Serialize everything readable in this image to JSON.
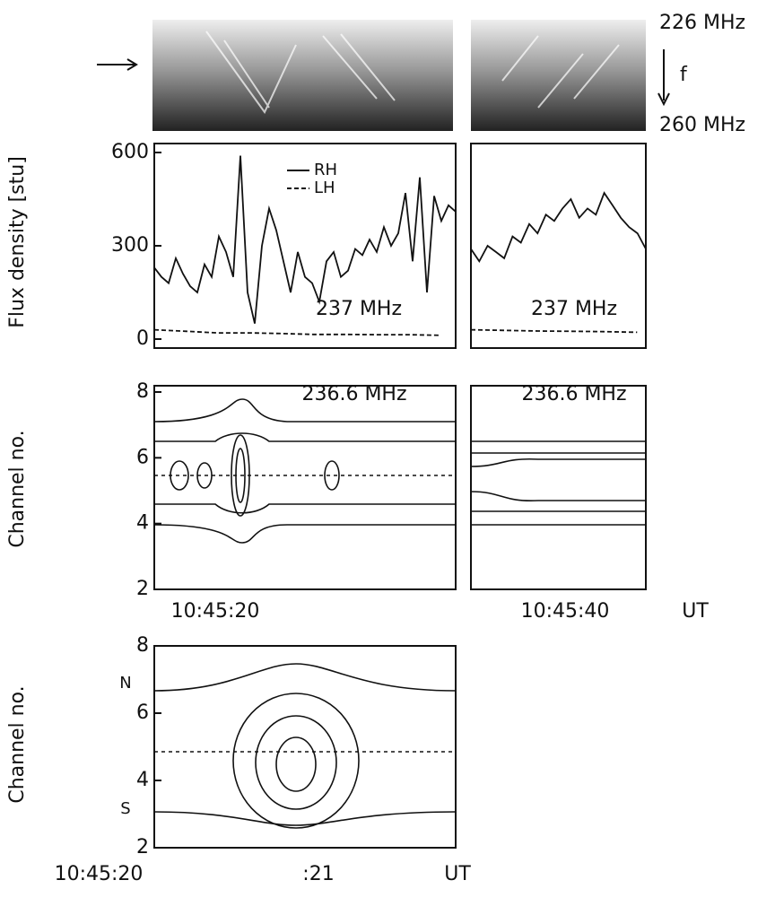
{
  "spectrogram": {
    "top_label": "226 MHz",
    "axis_label": "f",
    "bottom_label": "260 MHz"
  },
  "chart_data": [
    {
      "type": "line",
      "ylabel": "Flux density [stu]",
      "annotation": "237 MHz",
      "ylim": [
        0,
        600
      ],
      "yticks": [
        0,
        300,
        600
      ],
      "series": [
        {
          "name": "RH",
          "color": "#111111",
          "linestyle": "solid",
          "values": [
            230,
            200,
            180,
            260,
            210,
            170,
            150,
            240,
            200,
            330,
            280,
            200,
            590,
            150,
            50,
            300,
            420,
            350,
            250,
            150,
            280,
            200,
            180,
            120,
            250,
            280,
            200,
            220,
            290,
            270,
            320,
            280,
            360,
            300,
            340,
            470,
            250,
            520,
            150,
            460,
            380,
            430,
            410
          ]
        },
        {
          "name": "LH",
          "color": "#111111",
          "linestyle": "dashed",
          "values": [
            30,
            25,
            20,
            20,
            18,
            15,
            15,
            14,
            14,
            12
          ]
        }
      ]
    },
    {
      "type": "line",
      "annotation": "237 MHz",
      "ylim": [
        0,
        600
      ],
      "series": [
        {
          "color": "#111111",
          "linestyle": "solid",
          "values": [
            290,
            250,
            300,
            280,
            260,
            330,
            310,
            370,
            340,
            400,
            380,
            420,
            450,
            390,
            420,
            400,
            470,
            430,
            390,
            360,
            340,
            290
          ]
        },
        {
          "color": "#111111",
          "linestyle": "dashed",
          "values": [
            30,
            28,
            26,
            25,
            24,
            22
          ]
        }
      ]
    },
    {
      "type": "contour",
      "ylabel": "Channel no.",
      "annotation": "236.6 MHz",
      "ylim": [
        2,
        8
      ],
      "yticks": [
        2,
        4,
        6,
        8
      ],
      "xticklabels": [
        "10:45:20"
      ]
    },
    {
      "type": "contour",
      "annotation": "236.6 MHz",
      "ylim": [
        2,
        8
      ],
      "xticklabels": [
        "10:45:40"
      ],
      "xlabel": "UT"
    },
    {
      "type": "contour",
      "ylabel": "Channel no.",
      "ylim": [
        2,
        8
      ],
      "yticks": [
        2,
        4,
        6,
        8
      ],
      "xticklabels": [
        "10:45:20",
        ":21"
      ],
      "xlabel": "UT",
      "north_label": "N",
      "south_label": "S"
    }
  ]
}
